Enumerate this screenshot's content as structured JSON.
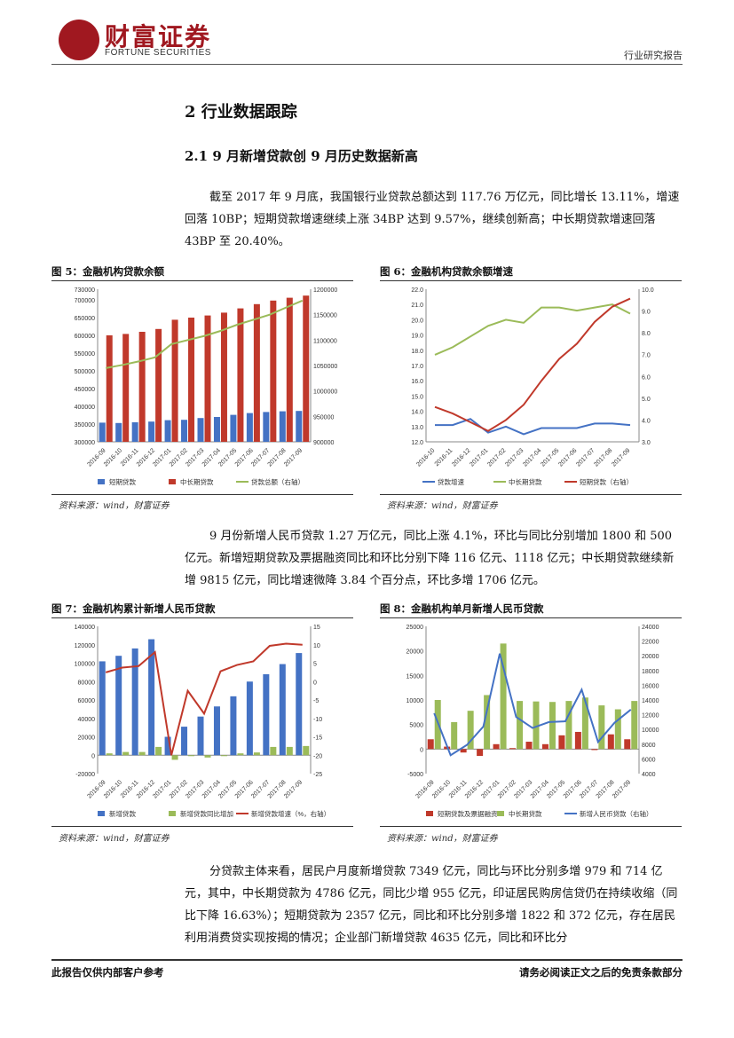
{
  "header": {
    "logo_text": "财富证券",
    "logo_sub": "FORTUNE SECURITIES",
    "report_type": "行业研究报告"
  },
  "section": {
    "h1": "2 行业数据跟踪",
    "h2": "2.1 9 月新增贷款创 9 月历史数据新高"
  },
  "paragraphs": {
    "p1": "截至 2017 年 9 月底，我国银行业贷款总额达到 117.76 万亿元，同比增长 13.11%，增速回落 10BP；短期贷款增速继续上涨 34BP 达到 9.57%，继续创新高；中长期贷款增速回落 43BP 至 20.40%。",
    "p2": "9 月份新增人民币贷款 1.27 万亿元，同比上涨 4.1%，环比与同比分别增加 1800 和 500 亿元。新增短期贷款及票据融资同比和环比分别下降 116 亿元、1118 亿元；中长期贷款继续新增 9815 亿元，同比增速微降 3.84 个百分点，环比多增 1706 亿元。",
    "p3": "分贷款主体来看，居民户月度新增贷款 7349 亿元，同比与环比分别多增 979 和 714 亿元，其中，中长期贷款为 4786 亿元，同比少增 955 亿元，印证居民购房信贷仍在持续收缩（同比下降 16.63%）；短期贷款为 2357 亿元，同比和环比分别多增 1822 和 372 亿元，存在居民利用消费贷实现按揭的情况；企业部门新增贷款 4635 亿元，同比和环比分"
  },
  "figures": {
    "fig5_title": "图 5：金融机构贷款余额",
    "fig6_title": "图 6：金融机构贷款余额增速",
    "fig7_title": "图 7：金融机构累计新增人民币贷款",
    "fig8_title": "图 8：金融机构单月新增人民币贷款",
    "source": "资料来源：wind，财富证券"
  },
  "footer": {
    "left": "此报告仅供内部客户参考",
    "right": "请务必阅读正文之后的免责条款部分"
  },
  "chart_data": [
    {
      "id": "fig5",
      "type": "bar",
      "categories": [
        "2016-09",
        "2016-10",
        "2016-11",
        "2016-12",
        "2017-01",
        "2017-02",
        "2017-03",
        "2017-04",
        "2017-05",
        "2017-06",
        "2017-07",
        "2017-08",
        "2017-09"
      ],
      "series": [
        {
          "name": "短期贷款",
          "axis": "left",
          "type": "bar",
          "color": "#4472c4",
          "values": [
            354000,
            353000,
            355000,
            357000,
            361000,
            362000,
            367000,
            370000,
            376000,
            381000,
            384000,
            386000,
            387000
          ]
        },
        {
          "name": "中长期贷款",
          "axis": "left",
          "type": "bar",
          "color": "#c0392b",
          "values": [
            600000,
            604000,
            610000,
            618000,
            644000,
            650000,
            656000,
            664000,
            676000,
            688000,
            698000,
            706000,
            712000
          ]
        },
        {
          "name": "贷款总额（右轴）",
          "axis": "right",
          "type": "line",
          "color": "#9bbb59",
          "values": [
            1045000,
            1051000,
            1058000,
            1066000,
            1092000,
            1100000,
            1108000,
            1118000,
            1130000,
            1140000,
            1150000,
            1164000,
            1177600
          ]
        }
      ],
      "ylim_left": [
        300000,
        730000
      ],
      "yticks_left": [
        "300000",
        "350000",
        "400000",
        "450000",
        "500000",
        "550000",
        "600000",
        "650000",
        "700000",
        "730000"
      ],
      "ylim_right": [
        900000,
        1200000
      ],
      "yticks_right": [
        "900000",
        "950000",
        "1000000",
        "1050000",
        "1100000",
        "1150000",
        "1200000"
      ]
    },
    {
      "id": "fig6",
      "type": "line",
      "categories": [
        "2016-10",
        "2016-11",
        "2016-12",
        "2017-01",
        "2017-02",
        "2017-03",
        "2017-04",
        "2017-05",
        "2017-06",
        "2017-07",
        "2017-08",
        "2017-09"
      ],
      "series": [
        {
          "name": "贷款增速",
          "axis": "left",
          "color": "#4472c4",
          "values": [
            13.1,
            13.1,
            13.5,
            12.6,
            13.0,
            12.5,
            12.9,
            12.9,
            12.9,
            13.2,
            13.2,
            13.1
          ]
        },
        {
          "name": "中长期贷款",
          "axis": "left",
          "color": "#9bbb59",
          "values": [
            17.7,
            18.2,
            18.9,
            19.6,
            20.0,
            19.8,
            20.8,
            20.8,
            20.6,
            20.8,
            21.0,
            20.4
          ]
        },
        {
          "name": "短期贷款（右轴）",
          "axis": "right",
          "color": "#c0392b",
          "values": [
            4.6,
            4.3,
            3.9,
            3.5,
            4.0,
            4.7,
            5.8,
            6.8,
            7.5,
            8.5,
            9.2,
            9.57
          ]
        }
      ],
      "ylim_left": [
        12.0,
        22.0
      ],
      "yticks_left": [
        "12.0",
        "13.0",
        "14.0",
        "15.0",
        "16.0",
        "17.0",
        "18.0",
        "19.0",
        "20.0",
        "21.0",
        "22.0"
      ],
      "ylim_right": [
        3.0,
        10.0
      ],
      "yticks_right": [
        "3.0",
        "4.0",
        "5.0",
        "6.0",
        "7.0",
        "8.0",
        "9.0",
        "10.0"
      ]
    },
    {
      "id": "fig7",
      "type": "bar",
      "categories": [
        "2016-09",
        "2016-10",
        "2016-11",
        "2016-12",
        "2017-01",
        "2017-02",
        "2017-03",
        "2017-04",
        "2017-05",
        "2017-06",
        "2017-07",
        "2017-08",
        "2017-09"
      ],
      "series": [
        {
          "name": "新增贷款",
          "axis": "left",
          "type": "bar",
          "color": "#4472c4",
          "values": [
            102000,
            108000,
            116000,
            126000,
            20000,
            31000,
            42000,
            53000,
            64000,
            80000,
            88000,
            99000,
            111000
          ]
        },
        {
          "name": "新增贷款同比增加",
          "axis": "left",
          "type": "bar",
          "color": "#9bbb59",
          "values": [
            2000,
            3500,
            3500,
            9000,
            -5000,
            -1000,
            -2500,
            -1000,
            2000,
            3000,
            9000,
            9000,
            10000
          ]
        },
        {
          "name": "新增贷款增速（%，右轴）",
          "axis": "right",
          "type": "line",
          "color": "#c0392b",
          "values": [
            2.5,
            3.8,
            4.2,
            8.0,
            -20.0,
            -2.5,
            -8.7,
            2.8,
            4.5,
            5.5,
            9.7,
            10.3,
            10.0
          ]
        }
      ],
      "ylim_left": [
        -20000,
        140000
      ],
      "yticks_left": [
        "-20000",
        "0",
        "20000",
        "40000",
        "60000",
        "80000",
        "100000",
        "120000",
        "140000"
      ],
      "ylim_right": [
        -25,
        15
      ],
      "yticks_right": [
        "-25",
        "-20",
        "-15",
        "-10",
        "-5",
        "0",
        "5",
        "10",
        "15"
      ]
    },
    {
      "id": "fig8",
      "type": "bar",
      "categories": [
        "2016-09",
        "2016-10",
        "2016-11",
        "2016-12",
        "2017-01",
        "2017-02",
        "2017-03",
        "2017-04",
        "2017-05",
        "2017-06",
        "2017-07",
        "2017-08",
        "2017-09"
      ],
      "series": [
        {
          "name": "短期贷款及票据融资",
          "axis": "left",
          "type": "bar",
          "color": "#c0392b",
          "values": [
            2000,
            500,
            -700,
            -1400,
            1000,
            200,
            1500,
            1000,
            2800,
            3500,
            -200,
            3000,
            2000
          ]
        },
        {
          "name": "中长期贷款",
          "axis": "left",
          "type": "bar",
          "color": "#9bbb59",
          "values": [
            10000,
            5500,
            7800,
            11000,
            21500,
            9800,
            9700,
            9600,
            9800,
            10500,
            8900,
            8100,
            9800
          ]
        },
        {
          "name": "新增人民币贷款（右轴）",
          "axis": "right",
          "type": "line",
          "color": "#4472c4",
          "values": [
            12200,
            6500,
            7900,
            10400,
            20300,
            11700,
            10200,
            11000,
            11100,
            15400,
            8300,
            10900,
            12700
          ]
        }
      ],
      "ylim_left": [
        -5000,
        25000
      ],
      "yticks_left": [
        "-5000",
        "0",
        "5000",
        "10000",
        "15000",
        "20000",
        "25000"
      ],
      "ylim_right": [
        4000,
        24000
      ],
      "yticks_right": [
        "4000",
        "6000",
        "8000",
        "10000",
        "12000",
        "14000",
        "16000",
        "18000",
        "20000",
        "22000",
        "24000"
      ]
    }
  ]
}
